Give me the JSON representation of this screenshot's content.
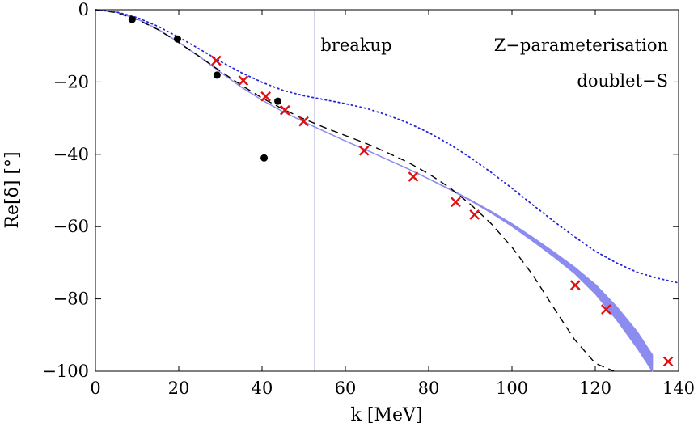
{
  "chart_data": {
    "type": "scatter",
    "title": "",
    "xlabel": "k [MeV]",
    "ylabel": "Re[δ] [°]",
    "xlim": [
      0,
      140
    ],
    "ylim": [
      -100,
      0
    ],
    "xticks": [
      0,
      20,
      40,
      60,
      80,
      100,
      120,
      140
    ],
    "yticks": [
      0,
      -20,
      -40,
      -60,
      -80,
      -100
    ],
    "xtick_labels": [
      "0",
      "20",
      "40",
      "60",
      "80",
      "100",
      "120",
      "140"
    ],
    "ytick_labels": [
      "0",
      "−20",
      "−40",
      "−60",
      "−80",
      "−100"
    ],
    "annotations": {
      "breakup": "breakup",
      "parameterisation": "Z−parameterisation",
      "channel": "doublet−S"
    },
    "breakup_k": 52.7,
    "series": [
      {
        "name": "band",
        "kind": "band",
        "color": "#8c8cf0",
        "x": [
          0,
          5,
          10,
          15,
          20,
          25,
          30,
          35,
          40,
          45,
          50,
          55,
          60,
          65,
          70,
          75,
          80,
          85,
          90,
          95,
          100,
          105,
          110,
          115,
          120,
          125,
          130,
          133.7
        ],
        "upper": [
          0,
          -0.7,
          -2.6,
          -5.4,
          -9.0,
          -13.0,
          -17.3,
          -21.4,
          -25.0,
          -28.2,
          -31.0,
          -33.7,
          -36.3,
          -38.8,
          -41.4,
          -44.0,
          -46.8,
          -49.6,
          -52.6,
          -55.8,
          -59.2,
          -63.0,
          -67.0,
          -71.2,
          -76.0,
          -82.0,
          -89.0,
          -95.5
        ],
        "lower": [
          0,
          -0.7,
          -2.6,
          -5.4,
          -9.0,
          -13.0,
          -17.3,
          -21.4,
          -25.0,
          -28.2,
          -31.0,
          -33.7,
          -36.3,
          -38.8,
          -41.4,
          -44.0,
          -46.8,
          -49.7,
          -52.8,
          -56.2,
          -59.9,
          -64.0,
          -68.3,
          -72.9,
          -78.6,
          -85.6,
          -93.5,
          -100
        ]
      },
      {
        "name": "dashed",
        "kind": "line",
        "style": "dashed",
        "color": "#000000",
        "x": [
          0,
          5,
          10,
          15,
          20,
          25,
          30,
          35,
          40,
          45,
          50,
          55,
          60,
          65,
          70,
          75,
          80,
          85,
          90,
          95,
          100,
          105,
          110,
          115,
          120,
          124.5
        ],
        "y": [
          0,
          -0.8,
          -2.7,
          -5.5,
          -9.1,
          -13.0,
          -17.0,
          -20.9,
          -24.4,
          -27.5,
          -30.2,
          -32.6,
          -34.8,
          -37.0,
          -39.5,
          -42.2,
          -45.4,
          -49.2,
          -53.8,
          -59.2,
          -65.7,
          -73.4,
          -82.4,
          -91.2,
          -97.8,
          -100
        ]
      },
      {
        "name": "dotted",
        "kind": "line",
        "style": "dotted",
        "color": "#2626d9",
        "x": [
          0,
          5,
          10,
          15,
          20,
          25,
          30,
          35,
          40,
          45,
          50,
          55,
          60,
          65,
          70,
          75,
          80,
          85,
          90,
          95,
          100,
          105,
          110,
          115,
          120,
          125,
          130,
          135,
          140
        ],
        "y": [
          0,
          -0.6,
          -2.2,
          -4.6,
          -7.6,
          -10.9,
          -14.3,
          -17.4,
          -20.1,
          -22.3,
          -23.8,
          -24.9,
          -26.0,
          -27.3,
          -29.1,
          -31.3,
          -34.0,
          -37.2,
          -40.9,
          -45.0,
          -49.4,
          -54.0,
          -58.5,
          -62.8,
          -66.8,
          -70.0,
          -72.6,
          -74.3,
          -75.6
        ]
      },
      {
        "name": "black-dots",
        "kind": "points",
        "marker": "dot",
        "color": "#000000",
        "x": [
          8.8,
          19.7,
          29.2,
          40.5,
          43.8
        ],
        "y": [
          -2.7,
          -8.1,
          -18.1,
          -41.0,
          -25.3
        ]
      },
      {
        "name": "red-crosses",
        "kind": "points",
        "marker": "x",
        "color": "#e01010",
        "x": [
          29.0,
          35.5,
          40.9,
          45.5,
          50.0,
          64.5,
          76.3,
          86.5,
          91.0,
          115.2,
          122.6,
          137.5
        ],
        "y": [
          -14.1,
          -19.6,
          -24.0,
          -27.8,
          -30.9,
          -39.0,
          -46.2,
          -53.2,
          -56.7,
          -76.2,
          -82.9,
          -97.3
        ]
      }
    ]
  }
}
